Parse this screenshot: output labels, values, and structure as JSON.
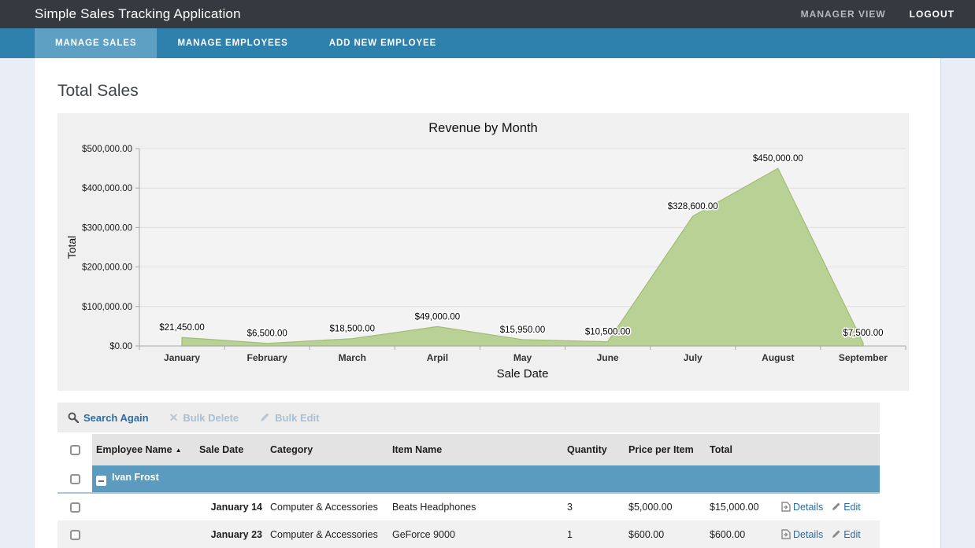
{
  "header": {
    "title": "Simple Sales Tracking Application",
    "manager_view": "MANAGER VIEW",
    "logout": "LOGOUT"
  },
  "nav": {
    "tabs": [
      {
        "label": "MANAGE SALES",
        "active": true
      },
      {
        "label": "MANAGE EMPLOYEES",
        "active": false
      },
      {
        "label": "ADD NEW EMPLOYEE",
        "active": false
      }
    ]
  },
  "page": {
    "section_title": "Total Sales"
  },
  "chart_data": {
    "type": "area",
    "title": "Revenue by Month",
    "xlabel": "Sale Date",
    "ylabel": "Total",
    "categories": [
      "January",
      "February",
      "March",
      "Arpil",
      "May",
      "June",
      "July",
      "August",
      "September"
    ],
    "values": [
      21450,
      6500,
      18500,
      49000,
      15950,
      10500,
      328600,
      450000,
      7500
    ],
    "value_labels": [
      "$21,450.00",
      "$6,500.00",
      "$18,500.00",
      "$49,000.00",
      "$15,950.00",
      "$10,500.00",
      "$328,600.00",
      "$450,000.00",
      "$7,500.00"
    ],
    "ytick_values": [
      0,
      100000,
      200000,
      300000,
      400000,
      500000
    ],
    "ytick_labels": [
      "$0.00",
      "$100,000.00",
      "$200,000.00",
      "$300,000.00",
      "$400,000.00",
      "$500,000.00"
    ],
    "ylim": [
      0,
      500000
    ],
    "grid": true,
    "legend": false,
    "area_fill": "#b9d194",
    "area_stroke": "#a2bf78"
  },
  "toolbar": {
    "search_again": "Search Again",
    "bulk_delete": "Bulk Delete",
    "bulk_edit": "Bulk Edit"
  },
  "table": {
    "columns": {
      "employee_name": "Employee Name",
      "sale_date": "Sale Date",
      "category": "Category",
      "item_name": "Item Name",
      "quantity": "Quantity",
      "price_per_item": "Price per Item",
      "total": "Total"
    },
    "group": {
      "name": "Ivan Frost"
    },
    "actions": {
      "details": "Details",
      "edit": "Edit"
    },
    "rows": [
      {
        "sale_date": "January 14",
        "category": "Computer & Accessories",
        "item_name": "Beats Headphones",
        "quantity": "3",
        "price_per_item": "$5,000.00",
        "total": "$15,000.00"
      },
      {
        "sale_date": "January 23",
        "category": "Computer & Accessories",
        "item_name": "GeForce 9000",
        "quantity": "1",
        "price_per_item": "$600.00",
        "total": "$600.00"
      }
    ]
  },
  "colors": {
    "header_bg": "#353a40",
    "nav_bg": "#2e81ad",
    "nav_active_bg": "#5e9fc4",
    "group_row_bg": "#5b9bbf",
    "link": "#2b6da3",
    "page_bg": "#e9edf6",
    "chart_bg": "#f0f0f0"
  }
}
